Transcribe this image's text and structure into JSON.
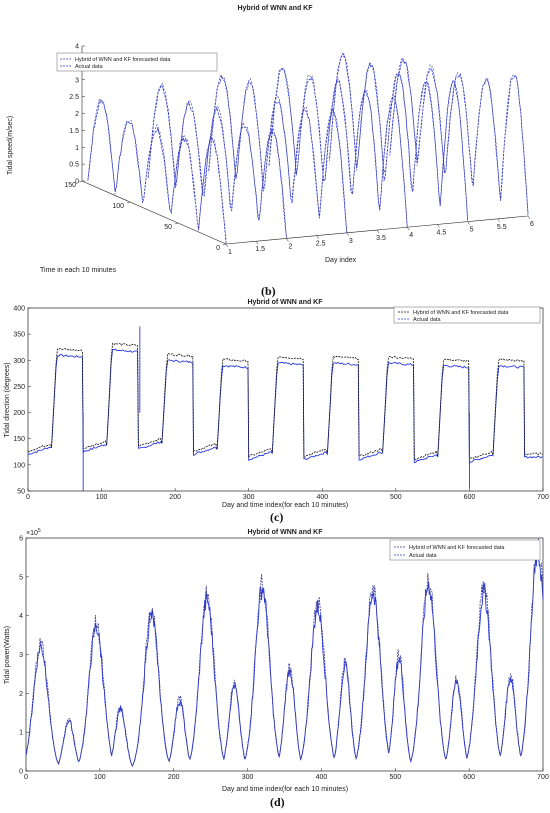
{
  "chart_data": [
    {
      "panel": "(b)",
      "type": "line",
      "projection": "3d",
      "title": "Hybrid of WNN and KF",
      "xlabel": "Day index",
      "ylabel": "Time in each 10 minutes",
      "zlabel": "Tidal speed(m/sec)",
      "x_ticks": [
        "1",
        "1.5",
        "2",
        "2.5",
        "3",
        "3.5",
        "4",
        "4.5",
        "5",
        "5.5",
        "6"
      ],
      "y_ticks": [
        "0",
        "50",
        "100",
        "150"
      ],
      "z_ticks": [
        "0",
        "0.5",
        "1",
        "1.5",
        "2",
        "2.5",
        "3",
        "3.5",
        "4"
      ],
      "xlim": [
        1,
        6
      ],
      "ylim": [
        0,
        150
      ],
      "zlim": [
        0,
        4
      ],
      "legend": {
        "position": "top-left",
        "entries": [
          "Hybrid of WNN and KF forecasted data",
          "Actual data"
        ]
      },
      "series": [
        {
          "name": "Hybrid of WNN and KF forecasted data",
          "style": "dashed",
          "color": "#4a4aa8"
        },
        {
          "name": "Actual data",
          "style": "dashed",
          "color": "#2a3adf"
        }
      ],
      "days": [
        {
          "day": 1,
          "peaks": [
            2.9,
            2.6,
            2.5,
            2.4,
            2.6
          ]
        },
        {
          "day": 2,
          "peaks": [
            3.0,
            2.8,
            2.9,
            2.7,
            2.9
          ]
        },
        {
          "day": 3,
          "peaks": [
            3.4,
            3.1,
            3.0,
            3.2,
            3.0
          ]
        },
        {
          "day": 4,
          "peaks": [
            3.6,
            3.5,
            3.4,
            3.2,
            3.1
          ]
        },
        {
          "day": 5,
          "peaks": [
            3.9,
            3.6,
            3.5,
            3.4,
            3.3
          ]
        },
        {
          "day": 6,
          "peaks": [
            4.0,
            3.5,
            3.3,
            3.1,
            3.0
          ]
        }
      ]
    },
    {
      "panel": "(c)",
      "type": "line",
      "title": "Hybrid of WNN and KF",
      "xlabel": "Day and time index(for each 10 minutes)",
      "ylabel": "Tidal direction (degrees)",
      "xlim": [
        0,
        700
      ],
      "ylim": [
        50,
        400
      ],
      "x_ticks": [
        "0",
        "100",
        "200",
        "300",
        "400",
        "500",
        "600",
        "700"
      ],
      "y_ticks": [
        "50",
        "100",
        "150",
        "200",
        "250",
        "300",
        "350",
        "400"
      ],
      "legend": {
        "position": "top-right",
        "entries": [
          "Hybrid of WNN and KF forecasted data",
          "Actual data"
        ]
      },
      "series": [
        {
          "name": "Hybrid of WNN and KF forecasted data",
          "style": "dashed",
          "color": "#111111"
        },
        {
          "name": "Actual data",
          "style": "dashed",
          "color": "#2a3adf"
        }
      ],
      "segments": [
        {
          "x0": 0,
          "x1": 75,
          "low": 120,
          "high": 310
        },
        {
          "x0": 75,
          "x1": 150,
          "low": 125,
          "high": 320
        },
        {
          "x0": 150,
          "x1": 225,
          "low": 130,
          "high": 300
        },
        {
          "x0": 225,
          "x1": 300,
          "low": 120,
          "high": 290
        },
        {
          "x0": 300,
          "x1": 375,
          "low": 110,
          "high": 295
        },
        {
          "x0": 375,
          "x1": 450,
          "low": 110,
          "high": 295
        },
        {
          "x0": 450,
          "x1": 525,
          "low": 110,
          "high": 295
        },
        {
          "x0": 525,
          "x1": 600,
          "low": 105,
          "high": 290
        },
        {
          "x0": 600,
          "x1": 675,
          "low": 105,
          "high": 290
        },
        {
          "x0": 675,
          "x1": 700,
          "low": 115,
          "high": 115
        }
      ]
    },
    {
      "panel": "(d)",
      "type": "line",
      "title": "Hybrid of WNN and KF",
      "xlabel": "Day and time index(for each 10 minutes)",
      "ylabel": "Tidal power(Watts)",
      "y_multiplier": "×10",
      "y_multiplier_exp": "5",
      "xlim": [
        0,
        700
      ],
      "ylim": [
        0,
        6
      ],
      "x_ticks": [
        "0",
        "100",
        "200",
        "300",
        "400",
        "500",
        "600",
        "700"
      ],
      "y_ticks": [
        "0",
        "1",
        "2",
        "3",
        "4",
        "5",
        "6"
      ],
      "legend": {
        "position": "top-right",
        "entries": [
          "Hybrid of WNN and KF forecasted data",
          "Actual data"
        ]
      },
      "series": [
        {
          "name": "Hybrid of WNN and KF forecasted data",
          "style": "dashed",
          "color": "#3a3a9a"
        },
        {
          "name": "Actual data",
          "style": "dashed",
          "color": "#2a3adf"
        }
      ],
      "peaks": [
        {
          "x": 20,
          "y": 3.2
        },
        {
          "x": 58,
          "y": 1.3
        },
        {
          "x": 95,
          "y": 3.7
        },
        {
          "x": 128,
          "y": 1.6
        },
        {
          "x": 170,
          "y": 4.0
        },
        {
          "x": 208,
          "y": 1.8
        },
        {
          "x": 245,
          "y": 4.4
        },
        {
          "x": 282,
          "y": 2.2
        },
        {
          "x": 320,
          "y": 4.7
        },
        {
          "x": 357,
          "y": 2.6
        },
        {
          "x": 395,
          "y": 4.2
        },
        {
          "x": 432,
          "y": 2.7
        },
        {
          "x": 470,
          "y": 4.6
        },
        {
          "x": 505,
          "y": 2.9
        },
        {
          "x": 545,
          "y": 4.8
        },
        {
          "x": 583,
          "y": 2.3
        },
        {
          "x": 620,
          "y": 4.6
        },
        {
          "x": 656,
          "y": 2.4
        },
        {
          "x": 693,
          "y": 5.6
        }
      ]
    }
  ]
}
